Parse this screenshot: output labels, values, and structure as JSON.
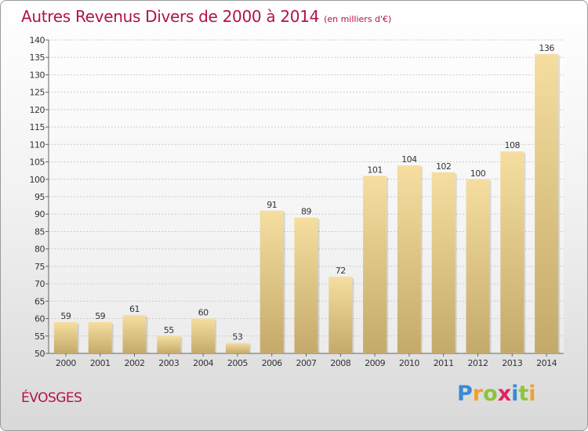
{
  "chart_data": {
    "type": "bar",
    "title": "Autres Revenus Divers de 2000 à 2014",
    "subtitle": "(en milliers d'€)",
    "categories": [
      "2000",
      "2001",
      "2002",
      "2003",
      "2004",
      "2005",
      "2006",
      "2007",
      "2008",
      "2009",
      "2010",
      "2011",
      "2012",
      "2013",
      "2014"
    ],
    "values": [
      59,
      59,
      61,
      55,
      60,
      53,
      91,
      89,
      72,
      101,
      104,
      102,
      100,
      108,
      136
    ],
    "ylim": [
      50,
      140
    ],
    "yticks": [
      50,
      55,
      60,
      65,
      70,
      75,
      80,
      85,
      90,
      95,
      100,
      105,
      110,
      115,
      120,
      125,
      130,
      135,
      140
    ],
    "grid": true,
    "xlabel": "",
    "ylabel": "",
    "colors": {
      "bar_light": "#f5dea0",
      "bar_dark": "#c4aa6a",
      "title": "#b3124a"
    }
  },
  "place_name": "ÉVOSGES",
  "brand": {
    "letters": [
      "P",
      "r",
      "o",
      "x",
      "i",
      "t",
      "i"
    ],
    "colors": [
      "#3a8ad6",
      "#f0a12c",
      "#8cc43c",
      "#e0245e",
      "#3a8ad6",
      "#8cc43c",
      "#f0a12c"
    ]
  }
}
